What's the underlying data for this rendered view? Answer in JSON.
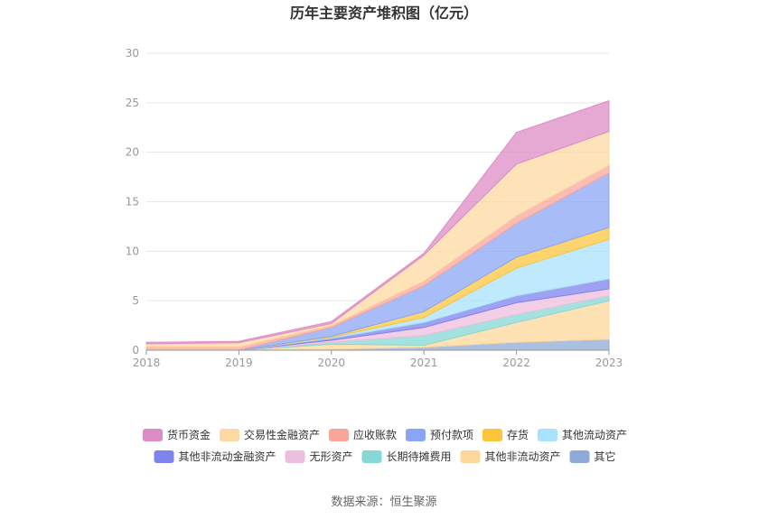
{
  "chart_data": {
    "type": "area",
    "stacked": true,
    "title": "历年主要资产堆积图（亿元）",
    "xlabel": "",
    "ylabel": "",
    "x": [
      "2018",
      "2019",
      "2020",
      "2021",
      "2022",
      "2023"
    ],
    "ylim": [
      0,
      30
    ],
    "yticks": [
      "0",
      "5",
      "10",
      "15",
      "20",
      "25",
      "30"
    ],
    "grid": true,
    "legend_position": "bottom",
    "series": [
      {
        "name": "其它",
        "color": "#8fa9d6",
        "values": [
          0.0,
          0.0,
          0.1,
          0.3,
          0.8,
          1.1
        ]
      },
      {
        "name": "其他非流动资产",
        "color": "#fdd89a",
        "values": [
          0.0,
          0.0,
          0.5,
          0.2,
          2.0,
          3.9
        ]
      },
      {
        "name": "长期待摊费用",
        "color": "#86d8d6",
        "values": [
          0.0,
          0.0,
          0.2,
          1.0,
          0.8,
          0.5
        ]
      },
      {
        "name": "无形资产",
        "color": "#eebfdd",
        "values": [
          0.0,
          0.0,
          0.2,
          0.8,
          1.2,
          0.7
        ]
      },
      {
        "name": "其他非流动金融资产",
        "color": "#7f83ee",
        "values": [
          0.0,
          0.0,
          0.2,
          0.5,
          0.7,
          1.0
        ]
      },
      {
        "name": "其他流动资产",
        "color": "#a9e2fb",
        "values": [
          0.0,
          0.0,
          0.1,
          0.5,
          2.8,
          4.0
        ]
      },
      {
        "name": "存货",
        "color": "#fcc53e",
        "values": [
          0.0,
          0.0,
          0.1,
          0.6,
          1.1,
          1.2
        ]
      },
      {
        "name": "预付款项",
        "color": "#8ba5f6",
        "values": [
          0.0,
          0.0,
          0.9,
          2.6,
          3.4,
          5.5
        ]
      },
      {
        "name": "应收账款",
        "color": "#f9a59a",
        "values": [
          0.35,
          0.35,
          0.2,
          0.5,
          0.8,
          0.8
        ]
      },
      {
        "name": "交易性金融资产",
        "color": "#fdd9a2",
        "values": [
          0.3,
          0.4,
          0.2,
          2.6,
          5.2,
          3.4
        ]
      },
      {
        "name": "货币资金",
        "color": "#dc8cc5",
        "values": [
          0.15,
          0.15,
          0.2,
          0.2,
          3.2,
          3.1
        ]
      }
    ],
    "legend_order": [
      "货币资金",
      "交易性金融资产",
      "应收账款",
      "预付款项",
      "存货",
      "其他流动资产",
      "其他非流动金融资产",
      "无形资产",
      "长期待摊费用",
      "其他非流动资产",
      "其它"
    ]
  },
  "footer": {
    "source": "数据来源：恒生聚源"
  }
}
